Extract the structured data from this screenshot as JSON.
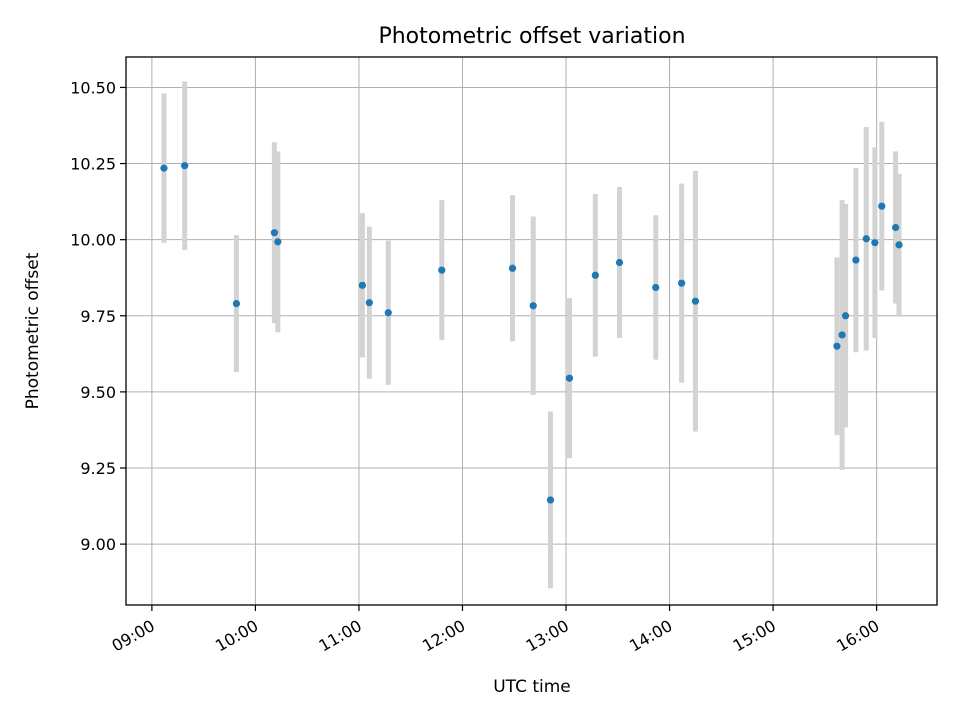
{
  "chart_data": {
    "type": "scatter",
    "title": "Photometric offset variation",
    "xlabel": "UTC time",
    "ylabel": "Photometric offset",
    "xlim": [
      "08:45",
      "16:35"
    ],
    "ylim": [
      8.8,
      10.6
    ],
    "grid": true,
    "x_ticks": [
      "09:00",
      "10:00",
      "11:00",
      "12:00",
      "13:00",
      "14:00",
      "15:00",
      "16:00"
    ],
    "y_ticks": [
      "9.00",
      "9.25",
      "9.50",
      "9.75",
      "10.00",
      "10.25",
      "10.50"
    ],
    "colors": {
      "marker": "#1f77b4",
      "errorbar": "#d3d3d3",
      "grid": "#b0b0b0"
    },
    "series": [
      {
        "points": [
          {
            "x": "09:07",
            "y": 10.235,
            "err": 0.245
          },
          {
            "x": "09:19",
            "y": 10.243,
            "err": 0.277
          },
          {
            "x": "09:49",
            "y": 9.79,
            "err": 0.225
          },
          {
            "x": "10:11",
            "y": 10.023,
            "err": 0.297
          },
          {
            "x": "10:13",
            "y": 9.993,
            "err": 0.297
          },
          {
            "x": "11:02",
            "y": 9.85,
            "err": 0.237
          },
          {
            "x": "11:06",
            "y": 9.793,
            "err": 0.25
          },
          {
            "x": "11:17",
            "y": 9.76,
            "err": 0.237
          },
          {
            "x": "11:48",
            "y": 9.9,
            "err": 0.23
          },
          {
            "x": "12:29",
            "y": 9.906,
            "err": 0.24
          },
          {
            "x": "12:41",
            "y": 9.783,
            "err": 0.293
          },
          {
            "x": "12:51",
            "y": 9.145,
            "err": 0.29
          },
          {
            "x": "13:02",
            "y": 9.545,
            "err": 0.263
          },
          {
            "x": "13:17",
            "y": 9.883,
            "err": 0.267
          },
          {
            "x": "13:31",
            "y": 9.925,
            "err": 0.248
          },
          {
            "x": "13:52",
            "y": 9.843,
            "err": 0.237
          },
          {
            "x": "14:07",
            "y": 9.857,
            "err": 0.327
          },
          {
            "x": "14:15",
            "y": 9.798,
            "err": 0.428
          },
          {
            "x": "15:37",
            "y": 9.65,
            "err": 0.292
          },
          {
            "x": "15:40",
            "y": 9.687,
            "err": 0.443
          },
          {
            "x": "15:42",
            "y": 9.75,
            "err": 0.367
          },
          {
            "x": "15:48",
            "y": 9.933,
            "err": 0.303
          },
          {
            "x": "15:54",
            "y": 10.003,
            "err": 0.367
          },
          {
            "x": "15:59",
            "y": 9.99,
            "err": 0.313
          },
          {
            "x": "16:03",
            "y": 10.11,
            "err": 0.277
          },
          {
            "x": "16:11",
            "y": 10.04,
            "err": 0.25
          },
          {
            "x": "16:13",
            "y": 9.983,
            "err": 0.233
          }
        ]
      }
    ]
  }
}
